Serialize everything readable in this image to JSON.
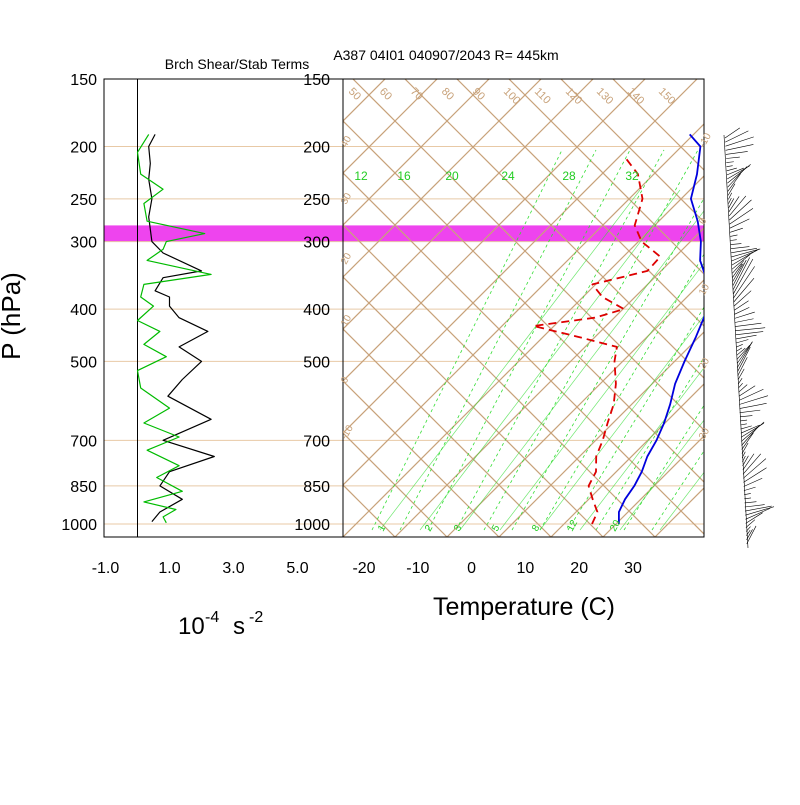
{
  "titles": {
    "left": "Brch Shear/Stab Terms",
    "right": "A387 04I01 040907/2043 R= 445km"
  },
  "axes": {
    "y_label": "P (hPa)",
    "pressure_ticks": [
      "150",
      "200",
      "250",
      "300",
      "400",
      "500",
      "700",
      "850",
      "1000"
    ],
    "left_x_ticks": [
      "-1.0",
      "1.0",
      "3.0",
      "5.0"
    ],
    "left_x_unit_base": "10",
    "left_x_unit_exp": "-4",
    "left_x_unit_s": "s",
    "left_x_unit_s_exp": "-2",
    "right_x_ticks": [
      "-20",
      "-10",
      "0",
      "10",
      "20",
      "30"
    ],
    "right_x_label": "Temperature (C)"
  },
  "skewt_labels": {
    "theta_top": [
      "50",
      "60",
      "70",
      "80",
      "90",
      "100",
      "110",
      "120",
      "130",
      "140",
      "150"
    ],
    "mixing_ratio_mid": [
      "12",
      "16",
      "20",
      "24",
      "28",
      "32"
    ],
    "mixing_ratio_bottom": [
      "1",
      "2",
      "3",
      "5",
      "8",
      "12",
      "20"
    ],
    "theta_e_left": [
      "40",
      "30",
      "20",
      "10",
      "0",
      "-10"
    ],
    "theta_e_right": [
      "-10",
      "0",
      "10",
      "20",
      "30"
    ]
  },
  "colors": {
    "isobar": "#e8c9a6",
    "skew_lines": "#c8a27a",
    "mixing_ratio": "#33dd33",
    "mixing_ratio_label": "#22cc22",
    "temperature": "#0000dd",
    "dewpoint": "#dd0000",
    "highlight": "#ee44ee",
    "shear_line": "#000000",
    "stab_line": "#00bb00"
  },
  "chart_data": [
    {
      "type": "line",
      "title": "Brch Shear/Stab Terms",
      "y_scale": "log",
      "ylabel": "P (hPa)",
      "ylim": [
        1000,
        150
      ],
      "xlim": [
        -1,
        5
      ],
      "highlight_band_hPa": [
        280,
        300
      ],
      "series": [
        {
          "color": "#000000",
          "points": [
            [
              0.55,
              190
            ],
            [
              0.35,
              200
            ],
            [
              0.4,
              215
            ],
            [
              0.35,
              230
            ],
            [
              0.45,
              250
            ],
            [
              0.35,
              270
            ],
            [
              0.45,
              300
            ],
            [
              0.8,
              315
            ],
            [
              2.0,
              340
            ],
            [
              0.8,
              350
            ],
            [
              0.55,
              370
            ],
            [
              1.0,
              380
            ],
            [
              1.0,
              395
            ],
            [
              1.3,
              415
            ],
            [
              2.2,
              440
            ],
            [
              1.3,
              470
            ],
            [
              2.0,
              500
            ],
            [
              1.4,
              540
            ],
            [
              0.95,
              580
            ],
            [
              2.3,
              640
            ],
            [
              0.8,
              700
            ],
            [
              2.4,
              750
            ],
            [
              1.0,
              800
            ],
            [
              0.7,
              850
            ],
            [
              1.4,
              900
            ],
            [
              0.7,
              950
            ],
            [
              0.45,
              990
            ]
          ]
        },
        {
          "color": "#00bb00",
          "points": [
            [
              0.35,
              190
            ],
            [
              0.0,
              205
            ],
            [
              0.1,
              225
            ],
            [
              0.8,
              240
            ],
            [
              0.2,
              255
            ],
            [
              0.3,
              275
            ],
            [
              2.1,
              290
            ],
            [
              0.9,
              300
            ],
            [
              0.8,
              310
            ],
            [
              0.3,
              325
            ],
            [
              2.3,
              345
            ],
            [
              0.2,
              360
            ],
            [
              0.1,
              380
            ],
            [
              0.5,
              395
            ],
            [
              0.0,
              420
            ],
            [
              0.7,
              440
            ],
            [
              0.2,
              465
            ],
            [
              0.9,
              490
            ],
            [
              0.0,
              520
            ],
            [
              0.1,
              560
            ],
            [
              1.0,
              610
            ],
            [
              0.2,
              650
            ],
            [
              1.3,
              690
            ],
            [
              0.3,
              730
            ],
            [
              1.3,
              780
            ],
            [
              0.6,
              820
            ],
            [
              1.4,
              870
            ],
            [
              0.2,
              910
            ],
            [
              1.2,
              940
            ],
            [
              0.8,
              970
            ],
            [
              0.9,
              995
            ]
          ]
        }
      ]
    },
    {
      "type": "line",
      "title": "A387 04I01 040907/2043 R= 445km",
      "xlabel": "Temperature (C)",
      "ylabel": "P (hPa)",
      "y_scale": "log",
      "ylim": [
        1000,
        150
      ],
      "xlim": [
        -20,
        35
      ],
      "highlight_band_hPa": [
        280,
        300
      ],
      "series": [
        {
          "name": "temperature",
          "color": "#0000dd",
          "style": "solid",
          "points": [
            [
              27,
              1000
            ],
            [
              25,
              950
            ],
            [
              24,
              900
            ],
            [
              23.5,
              850
            ],
            [
              22.5,
              800
            ],
            [
              21,
              750
            ],
            [
              20,
              700
            ],
            [
              18.5,
              650
            ],
            [
              16.5,
              600
            ],
            [
              14,
              550
            ],
            [
              12,
              500
            ],
            [
              10,
              450
            ],
            [
              7.5,
              400
            ],
            [
              4.5,
              375
            ],
            [
              2,
              350
            ],
            [
              -2,
              325
            ],
            [
              -5,
              300
            ],
            [
              -9,
              275
            ],
            [
              -14,
              250
            ],
            [
              -17,
              225
            ],
            [
              -21,
              200
            ],
            [
              -25,
              190
            ]
          ]
        },
        {
          "name": "dewpoint",
          "color": "#dd0000",
          "style": "dashed",
          "points": [
            [
              22,
              1000
            ],
            [
              21,
              950
            ],
            [
              18,
              900
            ],
            [
              15,
              850
            ],
            [
              14,
              800
            ],
            [
              11.5,
              750
            ],
            [
              10,
              700
            ],
            [
              8,
              650
            ],
            [
              6,
              600
            ],
            [
              3,
              550
            ],
            [
              -1,
              500
            ],
            [
              -3,
              470
            ],
            [
              -12,
              450
            ],
            [
              -22,
              430
            ],
            [
              -12,
              415
            ],
            [
              -8,
              400
            ],
            [
              -14,
              380
            ],
            [
              -18,
              360
            ],
            [
              -10,
              340
            ],
            [
              -10,
              320
            ],
            [
              -16,
              300
            ],
            [
              -20,
              280
            ],
            [
              -23,
              250
            ],
            [
              -28,
              225
            ],
            [
              -33,
              210
            ]
          ]
        }
      ],
      "wind_barbs_side": "right"
    }
  ]
}
